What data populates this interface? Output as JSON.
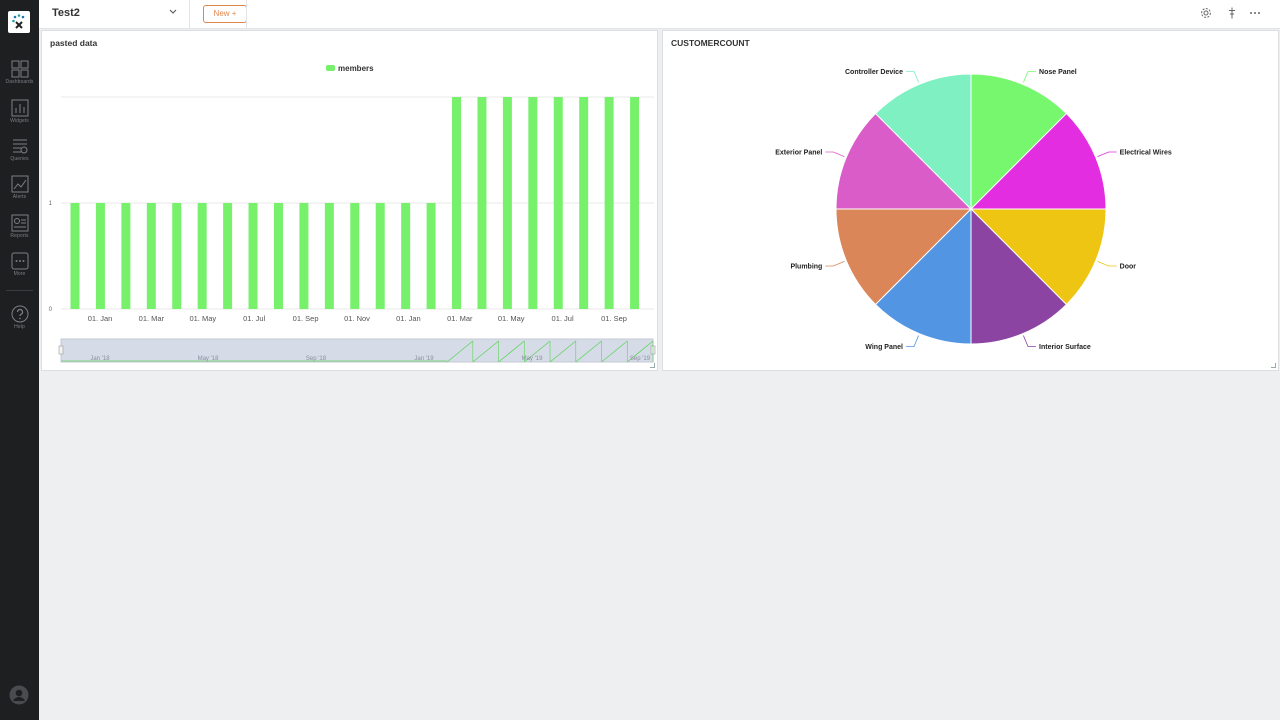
{
  "topbar": {
    "dashboard_title": "Test2",
    "new_button": "New +"
  },
  "sidebar": {
    "items": [
      {
        "label": "Dashboards",
        "icon": "dashboards-icon"
      },
      {
        "label": "Widgets",
        "icon": "widgets-icon"
      },
      {
        "label": "Queries",
        "icon": "queries-icon"
      },
      {
        "label": "Alerts",
        "icon": "alerts-icon"
      },
      {
        "label": "Reports",
        "icon": "reports-icon"
      },
      {
        "label": "More",
        "icon": "more-icon"
      },
      {
        "label": "Help",
        "icon": "help-icon"
      }
    ]
  },
  "widgets": [
    {
      "title": "pasted data",
      "chart_data": {
        "type": "bar",
        "title": "",
        "legend": "top-center",
        "series": [
          {
            "name": "members",
            "color": "#77f16c",
            "values": [
              1,
              1,
              1,
              1,
              1,
              1,
              1,
              1,
              1,
              1,
              1,
              1,
              1,
              1,
              1,
              2,
              2,
              2,
              2,
              2,
              2,
              2,
              2
            ]
          }
        ],
        "x_tick_labels": [
          "01. Jan",
          "01. Mar",
          "01. May",
          "01. Jul",
          "01. Sep",
          "01. Nov",
          "01. Jan",
          "01. Mar",
          "01. May",
          "01. Jul",
          "01. Sep"
        ],
        "y_tick_labels": [
          "0",
          "1"
        ],
        "ylim": [
          0,
          2
        ],
        "navigator_labels": [
          "Jan '18",
          "May '18",
          "Sep '18",
          "Jan '19",
          "May '19",
          "Sep '19"
        ]
      }
    },
    {
      "title": "CUSTOMERCOUNT",
      "chart_data": {
        "type": "pie",
        "slices": [
          {
            "label": "Nose Panel",
            "value": 1,
            "color": "#77f76e"
          },
          {
            "label": "Electrical Wires",
            "value": 1,
            "color": "#e22ee0"
          },
          {
            "label": "Door",
            "value": 1,
            "color": "#eec512"
          },
          {
            "label": "Interior Surface",
            "value": 1,
            "color": "#8c44a3"
          },
          {
            "label": "Wing Panel",
            "value": 1,
            "color": "#5295e2"
          },
          {
            "label": "Plumbing",
            "value": 1,
            "color": "#da8658"
          },
          {
            "label": "Exterior Panel",
            "value": 1,
            "color": "#da5cc9"
          },
          {
            "label": "Controller Device",
            "value": 1,
            "color": "#7ef0c2"
          }
        ]
      }
    }
  ]
}
